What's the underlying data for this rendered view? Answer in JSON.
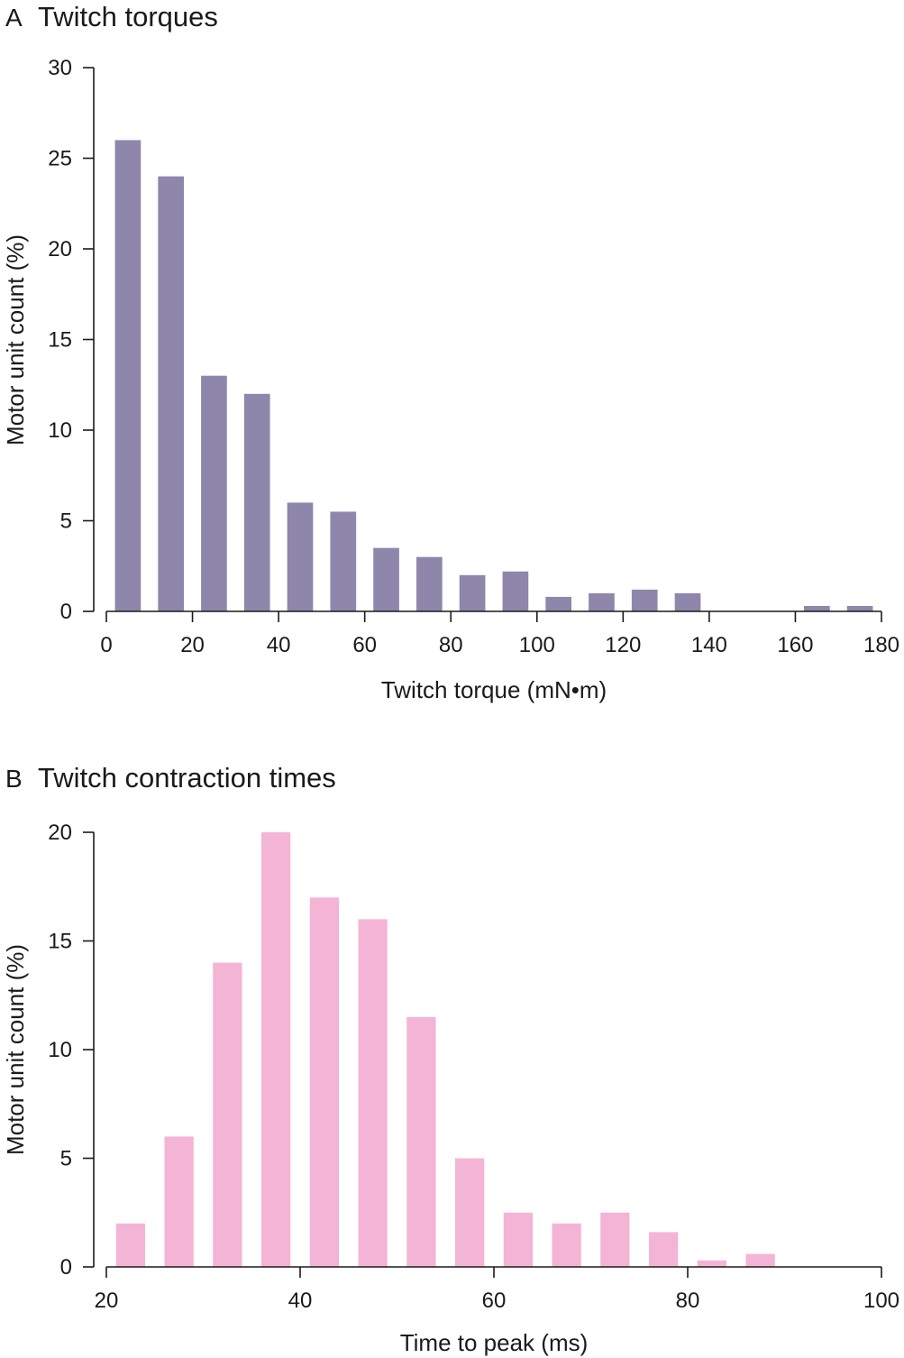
{
  "colors": {
    "panel_a_bars": "#8F86AB",
    "panel_b_bars": "#F4B4D6",
    "axis": "#1a1a1a"
  },
  "chart_data": [
    {
      "type": "bar",
      "panel_letter": "A",
      "title": "Twitch torques",
      "xlabel": "Twitch torque (mN•m)",
      "ylabel": "Motor unit count (%)",
      "xlim": [
        0,
        180
      ],
      "ylim": [
        0,
        30
      ],
      "xticks": [
        0,
        20,
        40,
        60,
        80,
        100,
        120,
        140,
        160,
        180
      ],
      "yticks": [
        0,
        5,
        10,
        15,
        20,
        25,
        30
      ],
      "bin_width": 10,
      "x": [
        5,
        15,
        25,
        35,
        45,
        55,
        65,
        75,
        85,
        95,
        105,
        115,
        125,
        135,
        165,
        175
      ],
      "values": [
        26,
        24,
        13,
        12,
        6,
        5.5,
        3.5,
        3,
        2,
        2.2,
        0.8,
        1,
        1.2,
        1,
        0.3,
        0.3
      ],
      "grid": false,
      "legend": "none"
    },
    {
      "type": "bar",
      "panel_letter": "B",
      "title": "Twitch contraction times",
      "xlabel": "Time to peak (ms)",
      "ylabel": "Motor unit count (%)",
      "xlim": [
        20,
        100
      ],
      "ylim": [
        0,
        20
      ],
      "xticks": [
        20,
        40,
        60,
        80,
        100
      ],
      "yticks": [
        0,
        5,
        10,
        15,
        20
      ],
      "bin_width": 5,
      "x": [
        22.5,
        27.5,
        32.5,
        37.5,
        42.5,
        47.5,
        52.5,
        57.5,
        62.5,
        67.5,
        72.5,
        77.5,
        82.5,
        87.5
      ],
      "values": [
        2,
        6,
        14,
        20,
        17,
        16,
        11.5,
        5,
        2.5,
        2,
        2.5,
        1.6,
        0.3,
        0.6
      ],
      "grid": false,
      "legend": "none"
    }
  ]
}
